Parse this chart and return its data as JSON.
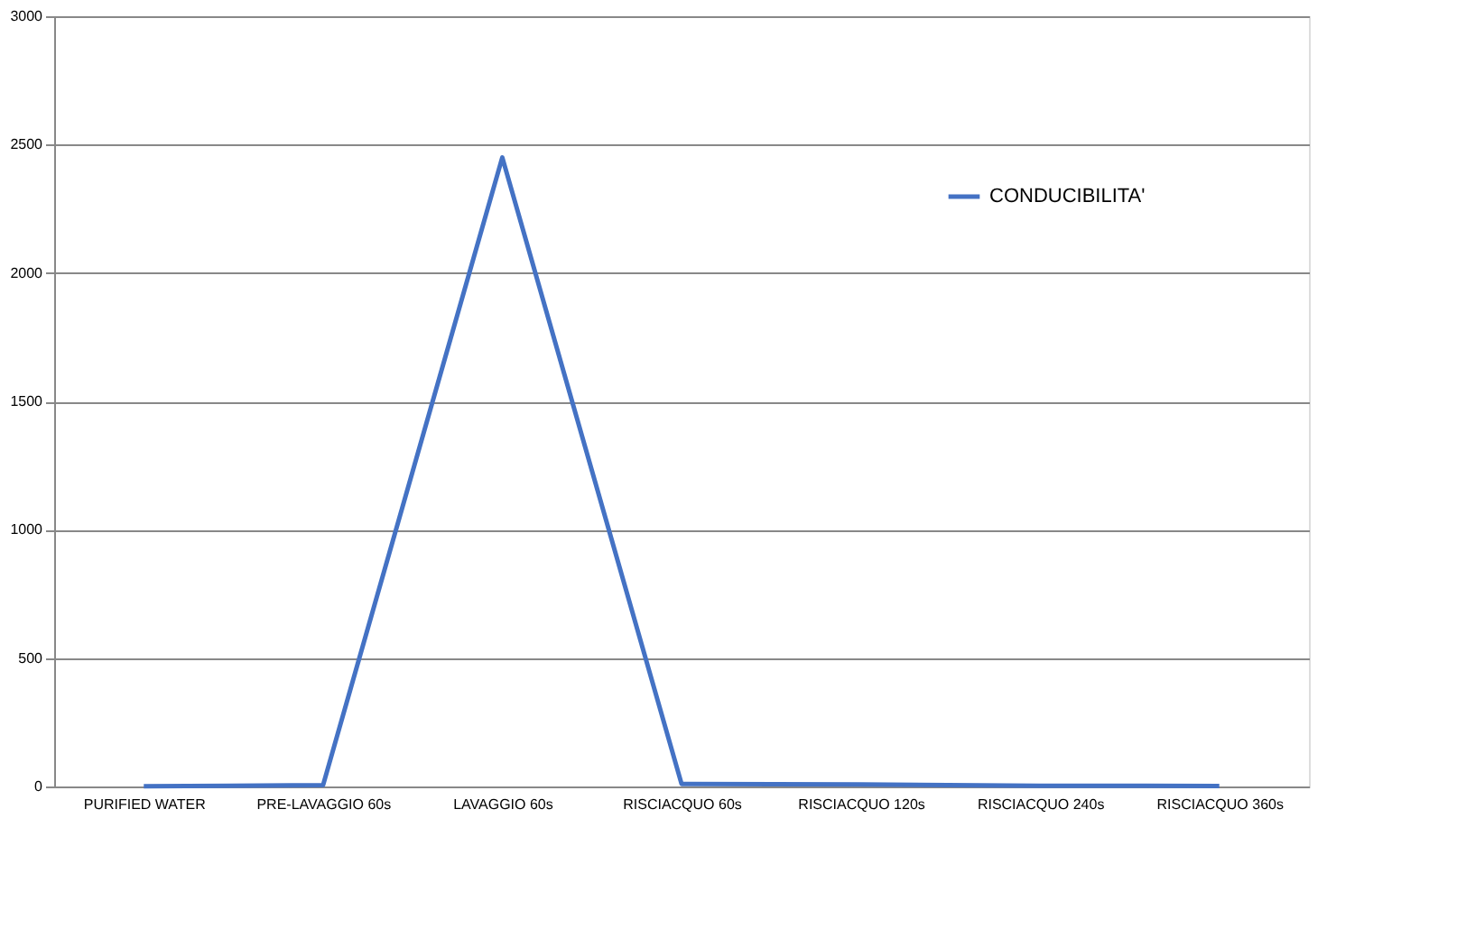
{
  "chart_data": {
    "type": "line",
    "categories": [
      "PURIFIED WATER",
      "PRE-LAVAGGIO 60s",
      "LAVAGGIO 60s",
      "RISCIACQUO 60s",
      "RISCIACQUO 120s",
      "RISCIACQUO 240s",
      "RISCIACQUO 360s"
    ],
    "series": [
      {
        "name": "CONDUCIBILITA'",
        "color": "#4472c4",
        "values": [
          1,
          5,
          2450,
          10,
          8,
          3,
          2
        ]
      }
    ],
    "ylim": [
      0,
      3000
    ],
    "yticks": [
      0,
      500,
      1000,
      1500,
      2000,
      2500,
      3000
    ],
    "grid": "y",
    "legend": "top right",
    "marker": "none",
    "line_style": "solid"
  }
}
